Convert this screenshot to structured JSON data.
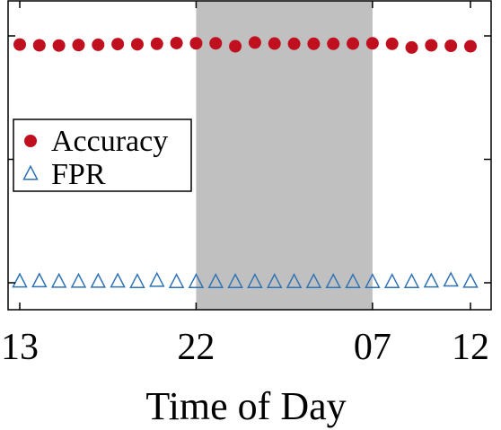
{
  "chart_data": {
    "type": "scatter",
    "title": "",
    "xlabel": "Time of Day",
    "ylabel": "",
    "x_tick_labels": [
      "13",
      "22",
      "07",
      "12"
    ],
    "x_tick_index": [
      0,
      9,
      18,
      23
    ],
    "shaded_region_index": [
      9,
      18
    ],
    "shaded_color": "#c0c0c0",
    "legend_position": "middle-left",
    "grid": false,
    "y_range": [
      0,
      1
    ],
    "series": [
      {
        "name": "Accuracy",
        "marker": "circle",
        "color": "#c0101f",
        "values": [
          0.965,
          0.962,
          0.961,
          0.963,
          0.964,
          0.967,
          0.966,
          0.968,
          0.971,
          0.97,
          0.97,
          0.958,
          0.973,
          0.969,
          0.968,
          0.968,
          0.968,
          0.969,
          0.97,
          0.968,
          0.953,
          0.962,
          0.96,
          0.958
        ]
      },
      {
        "name": "FPR",
        "marker": "triangle",
        "color": "#2f72b4",
        "values": [
          0.004,
          0.005,
          0.003,
          0.003,
          0.003,
          0.004,
          0.002,
          0.007,
          0.002,
          0.002,
          0.002,
          0.002,
          0.002,
          0.002,
          0.002,
          0.002,
          0.002,
          0.002,
          0.002,
          0.002,
          0.002,
          0.004,
          0.008,
          0.003
        ]
      }
    ]
  }
}
